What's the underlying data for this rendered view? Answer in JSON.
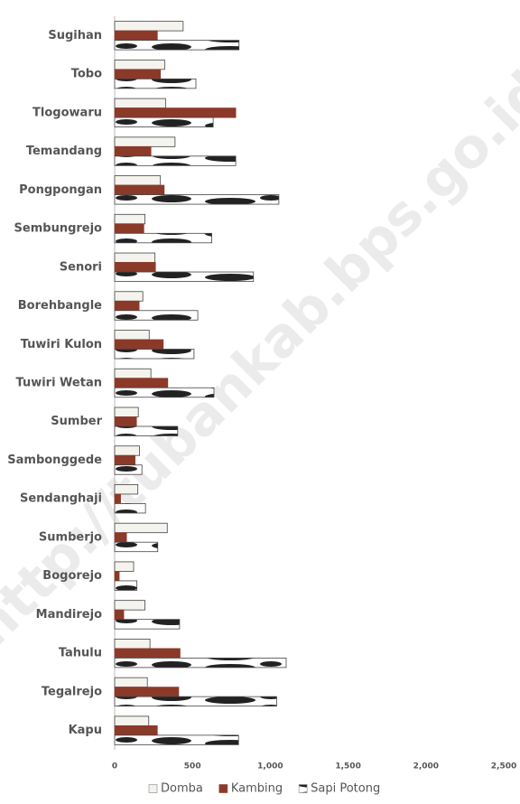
{
  "watermark": "http://tubankab.bps.go.id",
  "chart_data": {
    "type": "hbar",
    "categories": [
      "Sugihan",
      "Tobo",
      "Tlogowaru",
      "Temandang",
      "Pongpongan",
      "Sembungrejo",
      "Senori",
      "Borehbangle",
      "Tuwiri Kulon",
      "Tuwiri Wetan",
      "Sumber",
      "Sambonggede",
      "Sendanghaji",
      "Sumberjo",
      "Bogorejo",
      "Mandirejo",
      "Tahulu",
      "Tegalrejo",
      "Kapu"
    ],
    "series": [
      {
        "name": "Domba",
        "color": "#f5f3ee",
        "values": [
          440,
          321,
          327,
          388,
          294,
          195,
          259,
          181,
          222,
          233,
          152,
          160,
          149,
          338,
          122,
          195,
          227,
          210,
          219
        ]
      },
      {
        "name": "Kambing",
        "color": "#8b3a2a",
        "values": [
          274,
          294,
          778,
          233,
          318,
          187,
          262,
          157,
          312,
          341,
          140,
          131,
          38,
          76,
          29,
          58,
          420,
          411,
          274
        ]
      },
      {
        "name": "Sapi Potong",
        "color": "#222222",
        "values": [
          799,
          522,
          633,
          778,
          1055,
          624,
          892,
          534,
          510,
          638,
          405,
          175,
          198,
          277,
          143,
          417,
          1102,
          1041,
          796
        ]
      }
    ],
    "xlim": [
      0,
      2500
    ],
    "xticks": [
      0,
      500,
      {
        "value": 1000,
        "label": "1,000"
      },
      {
        "value": 1500,
        "label": "1,500"
      },
      {
        "value": 2000,
        "label": "2,000"
      },
      {
        "value": 2500,
        "label": "2,500"
      }
    ]
  }
}
